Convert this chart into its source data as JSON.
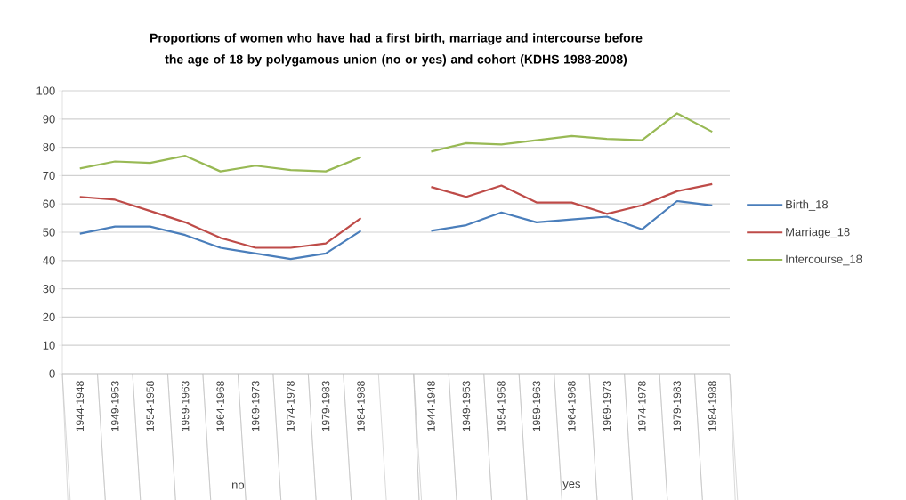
{
  "chart_data": {
    "type": "line",
    "title": "Proportions of women who have had a first birth, marriage and intercourse before the age of 18 by polygamous union (no or yes) and cohort (KDHS 1988-2008)",
    "categories": [
      "1944-1948",
      "1949-1953",
      "1954-1958",
      "1959-1963",
      "1964-1968",
      "1969-1973",
      "1974-1978",
      "1979-1983",
      "1984-1988",
      null,
      "1944-1948",
      "1949-1953",
      "1954-1958",
      "1959-1963",
      "1964-1968",
      "1969-1973",
      "1974-1978",
      "1979-1983",
      "1984-1988"
    ],
    "series": [
      {
        "name": "Birth_18",
        "color": "#4a7ebb",
        "values": [
          49.5,
          52,
          52,
          49,
          44.5,
          42.5,
          40.5,
          42.5,
          50.5,
          null,
          50.5,
          52.5,
          57,
          53.5,
          54.5,
          55.5,
          51,
          61,
          59.5
        ]
      },
      {
        "name": "Marriage_18",
        "color": "#be4b48",
        "values": [
          62.5,
          61.5,
          57.5,
          53.5,
          48,
          44.5,
          44.5,
          46,
          55,
          null,
          66,
          62.5,
          66.5,
          60.5,
          60.5,
          56.5,
          59.5,
          64.5,
          67
        ]
      },
      {
        "name": "Intercourse_18",
        "color": "#98b954",
        "values": [
          72.5,
          75,
          74.5,
          77,
          71.5,
          73.5,
          72,
          71.5,
          76.5,
          null,
          78.5,
          81.5,
          81,
          82.5,
          84,
          83,
          82.5,
          92,
          85.5
        ]
      }
    ],
    "annotations": [
      "no",
      "yes"
    ],
    "ylim": [
      0,
      100
    ],
    "yticks": [
      0,
      10,
      20,
      30,
      40,
      50,
      60,
      70,
      80,
      90,
      100
    ],
    "grid": "y",
    "legend": "right",
    "marker": "none",
    "line_style": "solid"
  }
}
